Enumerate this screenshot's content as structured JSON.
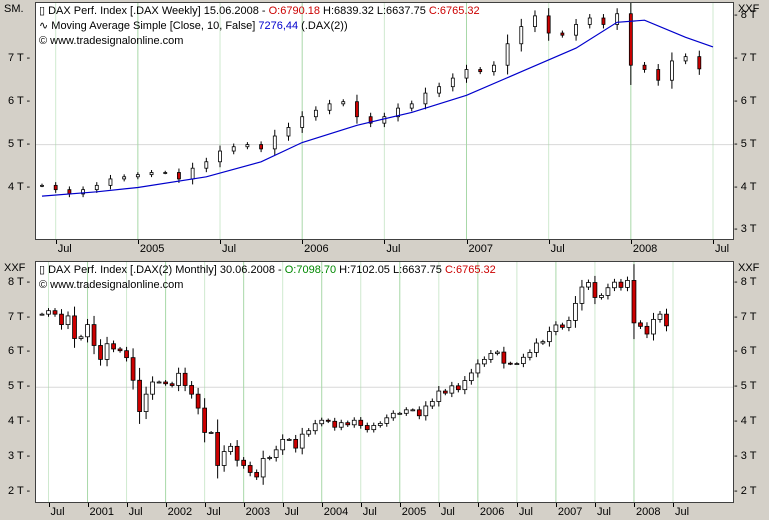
{
  "top_panel": {
    "corner_left": "SM.",
    "corner_right": "XXF",
    "legend": {
      "line1_prefix": "DAX Perf. Index [.DAX  Weekly] 15.06.2008 - ",
      "line1_open": "O:6790.18",
      "line1_mid": " H:6839.32 L:6637.75 ",
      "line1_close": "C:6765.32",
      "line2_prefix": "Moving Average Simple [Close, 10, False] ",
      "line2_value": "7276,44",
      "line2_suffix": " (.DAX(2))",
      "line3": "© www.tradesignalonline.com"
    },
    "y_ticks": [
      "8 T",
      "7 T",
      "6 T",
      "5 T",
      "4 T",
      "3 T"
    ],
    "left_y_ticks": [
      "7 T",
      "6 T",
      "5 T",
      "4 T"
    ],
    "x_ticks": [
      "Jul",
      "2005",
      "Jul",
      "2006",
      "Jul",
      "2007",
      "Jul",
      "2008",
      "Jul"
    ]
  },
  "bottom_panel": {
    "corner_left": "XXF",
    "corner_right": "XXF",
    "legend": {
      "line1_prefix": "DAX Perf. Index [.DAX(2)  Monthly] 30.06.2008 - ",
      "line1_open": "O:7098.70",
      "line1_mid": " H:7102.05 L:6637.75 ",
      "line1_close": "C:6765.32",
      "line2": "© www.tradesignalonline.com"
    },
    "y_ticks": [
      "8 T",
      "7 T",
      "6 T",
      "5 T",
      "4 T",
      "3 T",
      "2 T"
    ],
    "x_ticks": [
      "Jul",
      "2001",
      "Jul",
      "2002",
      "Jul",
      "2003",
      "Jul",
      "2004",
      "Jul",
      "2005",
      "Jul",
      "2006",
      "Jul",
      "2007",
      "Jul",
      "2008",
      "Jul"
    ]
  },
  "colors": {
    "up_fill": "#ffffff",
    "down_fill": "#cc0000",
    "ma_line": "#0000cc",
    "grid_v": "#a8d8a8",
    "grid_h": "#d8d8d8"
  },
  "chart_data": [
    {
      "type": "candlestick",
      "title": "DAX Perf. Index [.DAX Weekly]",
      "period": "weekly",
      "ylim": [
        2800,
        8300
      ],
      "x_range": [
        "2004-06",
        "2008-07"
      ],
      "close_series": [
        {
          "t": "2004-06",
          "c": 4050
        },
        {
          "t": "2004-07",
          "c": 3950
        },
        {
          "t": "2004-08",
          "c": 3850
        },
        {
          "t": "2004-09",
          "c": 3950
        },
        {
          "t": "2004-10",
          "c": 4050
        },
        {
          "t": "2004-11",
          "c": 4200
        },
        {
          "t": "2004-12",
          "c": 4250
        },
        {
          "t": "2005-01",
          "c": 4300
        },
        {
          "t": "2005-02",
          "c": 4350
        },
        {
          "t": "2005-03",
          "c": 4350
        },
        {
          "t": "2005-04",
          "c": 4200
        },
        {
          "t": "2005-05",
          "c": 4450
        },
        {
          "t": "2005-06",
          "c": 4600
        },
        {
          "t": "2005-07",
          "c": 4850
        },
        {
          "t": "2005-08",
          "c": 4950
        },
        {
          "t": "2005-09",
          "c": 5000
        },
        {
          "t": "2005-10",
          "c": 4900
        },
        {
          "t": "2005-11",
          "c": 5200
        },
        {
          "t": "2005-12",
          "c": 5400
        },
        {
          "t": "2006-01",
          "c": 5650
        },
        {
          "t": "2006-02",
          "c": 5800
        },
        {
          "t": "2006-03",
          "c": 5950
        },
        {
          "t": "2006-04",
          "c": 6000
        },
        {
          "t": "2006-05",
          "c": 5650
        },
        {
          "t": "2006-06",
          "c": 5500
        },
        {
          "t": "2006-07",
          "c": 5650
        },
        {
          "t": "2006-08",
          "c": 5850
        },
        {
          "t": "2006-09",
          "c": 5950
        },
        {
          "t": "2006-10",
          "c": 6200
        },
        {
          "t": "2006-11",
          "c": 6350
        },
        {
          "t": "2006-12",
          "c": 6550
        },
        {
          "t": "2007-01",
          "c": 6750
        },
        {
          "t": "2007-02",
          "c": 6700
        },
        {
          "t": "2007-03",
          "c": 6850
        },
        {
          "t": "2007-04",
          "c": 7350
        },
        {
          "t": "2007-05",
          "c": 7750
        },
        {
          "t": "2007-06",
          "c": 8000
        },
        {
          "t": "2007-07",
          "c": 7600
        },
        {
          "t": "2007-08",
          "c": 7550
        },
        {
          "t": "2007-09",
          "c": 7800
        },
        {
          "t": "2007-10",
          "c": 7950
        },
        {
          "t": "2007-11",
          "c": 7800
        },
        {
          "t": "2007-12",
          "c": 8050
        },
        {
          "t": "2008-01",
          "c": 6850
        },
        {
          "t": "2008-02",
          "c": 6750
        },
        {
          "t": "2008-03",
          "c": 6500
        },
        {
          "t": "2008-04",
          "c": 6950
        },
        {
          "t": "2008-05",
          "c": 7050
        },
        {
          "t": "2008-06",
          "c": 6765
        }
      ],
      "moving_average": {
        "name": "Moving Average Simple [Close, 10, False]",
        "values": [
          {
            "t": "2004-06",
            "v": 3800
          },
          {
            "t": "2004-10",
            "v": 3900
          },
          {
            "t": "2005-01",
            "v": 4000
          },
          {
            "t": "2005-06",
            "v": 4250
          },
          {
            "t": "2005-10",
            "v": 4600
          },
          {
            "t": "2006-01",
            "v": 5050
          },
          {
            "t": "2006-05",
            "v": 5450
          },
          {
            "t": "2006-09",
            "v": 5750
          },
          {
            "t": "2007-01",
            "v": 6150
          },
          {
            "t": "2007-05",
            "v": 6700
          },
          {
            "t": "2007-09",
            "v": 7250
          },
          {
            "t": "2007-12",
            "v": 7850
          },
          {
            "t": "2008-02",
            "v": 7900
          },
          {
            "t": "2008-05",
            "v": 7500
          },
          {
            "t": "2008-07",
            "v": 7276
          }
        ]
      }
    },
    {
      "type": "candlestick",
      "title": "DAX Perf. Index [.DAX(2) Monthly]",
      "period": "monthly",
      "ylim": [
        1700,
        8600
      ],
      "x_range": [
        "2000-06",
        "2008-07"
      ],
      "close_series": [
        {
          "t": "2000-06",
          "c": 7100
        },
        {
          "t": "2000-07",
          "c": 7200
        },
        {
          "t": "2000-08",
          "c": 7100
        },
        {
          "t": "2000-09",
          "c": 6800
        },
        {
          "t": "2000-10",
          "c": 7050
        },
        {
          "t": "2000-11",
          "c": 6400
        },
        {
          "t": "2000-12",
          "c": 6450
        },
        {
          "t": "2001-01",
          "c": 6800
        },
        {
          "t": "2001-02",
          "c": 6200
        },
        {
          "t": "2001-03",
          "c": 5800
        },
        {
          "t": "2001-04",
          "c": 6250
        },
        {
          "t": "2001-05",
          "c": 6100
        },
        {
          "t": "2001-06",
          "c": 6050
        },
        {
          "t": "2001-07",
          "c": 5850
        },
        {
          "t": "2001-08",
          "c": 5200
        },
        {
          "t": "2001-09",
          "c": 4300
        },
        {
          "t": "2001-10",
          "c": 4800
        },
        {
          "t": "2001-11",
          "c": 5150
        },
        {
          "t": "2001-12",
          "c": 5150
        },
        {
          "t": "2002-01",
          "c": 5100
        },
        {
          "t": "2002-02",
          "c": 5050
        },
        {
          "t": "2002-03",
          "c": 5400
        },
        {
          "t": "2002-04",
          "c": 5050
        },
        {
          "t": "2002-05",
          "c": 4800
        },
        {
          "t": "2002-06",
          "c": 4400
        },
        {
          "t": "2002-07",
          "c": 3700
        },
        {
          "t": "2002-08",
          "c": 3700
        },
        {
          "t": "2002-09",
          "c": 2750
        },
        {
          "t": "2002-10",
          "c": 3150
        },
        {
          "t": "2002-11",
          "c": 3300
        },
        {
          "t": "2002-12",
          "c": 2900
        },
        {
          "t": "2003-01",
          "c": 2750
        },
        {
          "t": "2003-02",
          "c": 2550
        },
        {
          "t": "2003-03",
          "c": 2420
        },
        {
          "t": "2003-04",
          "c": 2950
        },
        {
          "t": "2003-05",
          "c": 2980
        },
        {
          "t": "2003-06",
          "c": 3200
        },
        {
          "t": "2003-07",
          "c": 3500
        },
        {
          "t": "2003-08",
          "c": 3500
        },
        {
          "t": "2003-09",
          "c": 3250
        },
        {
          "t": "2003-10",
          "c": 3650
        },
        {
          "t": "2003-11",
          "c": 3750
        },
        {
          "t": "2003-12",
          "c": 3950
        },
        {
          "t": "2004-01",
          "c": 4050
        },
        {
          "t": "2004-02",
          "c": 4020
        },
        {
          "t": "2004-03",
          "c": 3850
        },
        {
          "t": "2004-04",
          "c": 3980
        },
        {
          "t": "2004-05",
          "c": 3920
        },
        {
          "t": "2004-06",
          "c": 4050
        },
        {
          "t": "2004-07",
          "c": 3900
        },
        {
          "t": "2004-08",
          "c": 3780
        },
        {
          "t": "2004-09",
          "c": 3900
        },
        {
          "t": "2004-10",
          "c": 3960
        },
        {
          "t": "2004-11",
          "c": 4120
        },
        {
          "t": "2004-12",
          "c": 4250
        },
        {
          "t": "2005-01",
          "c": 4250
        },
        {
          "t": "2005-02",
          "c": 4350
        },
        {
          "t": "2005-03",
          "c": 4350
        },
        {
          "t": "2005-04",
          "c": 4180
        },
        {
          "t": "2005-05",
          "c": 4460
        },
        {
          "t": "2005-06",
          "c": 4590
        },
        {
          "t": "2005-07",
          "c": 4890
        },
        {
          "t": "2005-08",
          "c": 4830
        },
        {
          "t": "2005-09",
          "c": 5040
        },
        {
          "t": "2005-10",
          "c": 4930
        },
        {
          "t": "2005-11",
          "c": 5190
        },
        {
          "t": "2005-12",
          "c": 5410
        },
        {
          "t": "2006-01",
          "c": 5670
        },
        {
          "t": "2006-02",
          "c": 5800
        },
        {
          "t": "2006-03",
          "c": 5970
        },
        {
          "t": "2006-04",
          "c": 6010
        },
        {
          "t": "2006-05",
          "c": 5690
        },
        {
          "t": "2006-06",
          "c": 5680
        },
        {
          "t": "2006-07",
          "c": 5680
        },
        {
          "t": "2006-08",
          "c": 5860
        },
        {
          "t": "2006-09",
          "c": 6000
        },
        {
          "t": "2006-10",
          "c": 6270
        },
        {
          "t": "2006-11",
          "c": 6310
        },
        {
          "t": "2006-12",
          "c": 6600
        },
        {
          "t": "2007-01",
          "c": 6790
        },
        {
          "t": "2007-02",
          "c": 6720
        },
        {
          "t": "2007-03",
          "c": 6920
        },
        {
          "t": "2007-04",
          "c": 7410
        },
        {
          "t": "2007-05",
          "c": 7880
        },
        {
          "t": "2007-06",
          "c": 8010
        },
        {
          "t": "2007-07",
          "c": 7580
        },
        {
          "t": "2007-08",
          "c": 7640
        },
        {
          "t": "2007-09",
          "c": 7860
        },
        {
          "t": "2007-10",
          "c": 8020
        },
        {
          "t": "2007-11",
          "c": 7870
        },
        {
          "t": "2007-12",
          "c": 8070
        },
        {
          "t": "2008-01",
          "c": 6850
        },
        {
          "t": "2008-02",
          "c": 6750
        },
        {
          "t": "2008-03",
          "c": 6530
        },
        {
          "t": "2008-04",
          "c": 6950
        },
        {
          "t": "2008-05",
          "c": 7100
        },
        {
          "t": "2008-06",
          "c": 6765
        }
      ]
    }
  ]
}
